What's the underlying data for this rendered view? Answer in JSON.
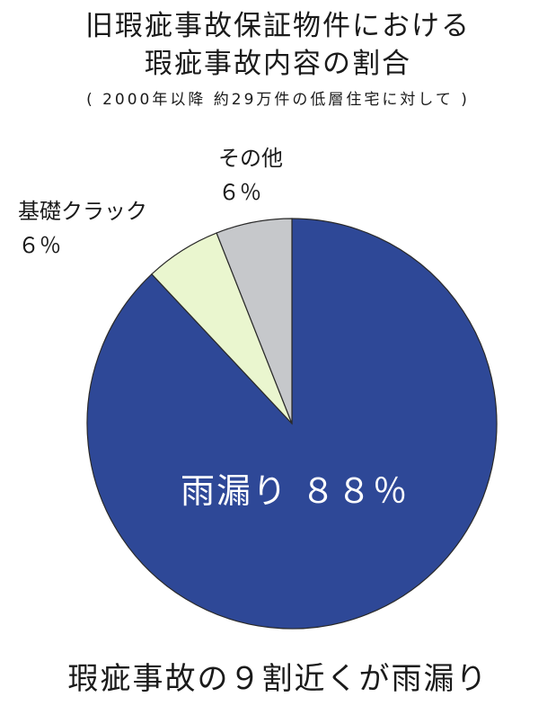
{
  "chart_data": {
    "type": "pie",
    "title_lines": [
      "旧瑕疵事故保証物件における",
      "瑕疵事故内容の割合"
    ],
    "subtitle": "( 2000年以降 約29万件の低層住宅に対して )",
    "caption": "瑕疵事故の９割近くが雨漏り",
    "slices": [
      {
        "label": "雨漏り",
        "value": 88,
        "display": "雨漏り ８８％",
        "color": "#2e4897"
      },
      {
        "label": "基礎クラック",
        "value": 6,
        "display": "６％",
        "color": "#eaf6cf"
      },
      {
        "label": "その他",
        "value": 6,
        "display": "６％",
        "color": "#c6c8cb"
      }
    ]
  }
}
